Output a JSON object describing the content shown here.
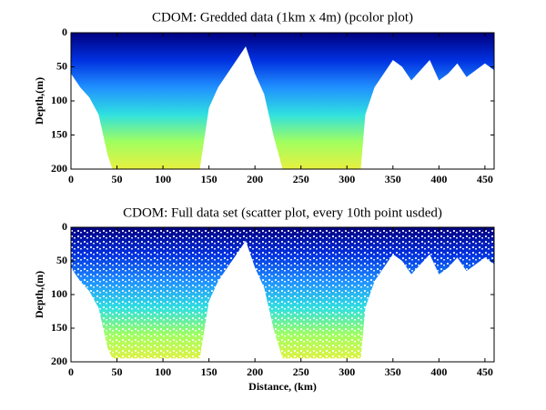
{
  "chart_data": [
    {
      "type": "area",
      "title": "CDOM: Gredded data (1km x 4m) (pcolor plot)",
      "ylabel": "Depth,(m)",
      "x": [
        0,
        10,
        20,
        30,
        40,
        45,
        140,
        150,
        160,
        170,
        180,
        190,
        200,
        210,
        220,
        230,
        315,
        320,
        330,
        340,
        350,
        360,
        370,
        380,
        390,
        400,
        410,
        420,
        430,
        440,
        450,
        460
      ],
      "values": [
        60,
        80,
        95,
        120,
        180,
        200,
        200,
        110,
        80,
        60,
        40,
        20,
        60,
        90,
        150,
        200,
        200,
        120,
        80,
        60,
        40,
        50,
        70,
        55,
        40,
        70,
        60,
        45,
        65,
        55,
        45,
        55
      ],
      "colormap": [
        "#00007f",
        "#0030e0",
        "#2090ff",
        "#30e0e0",
        "#a0ff60",
        "#e8f040"
      ],
      "xlim": [
        0,
        460
      ],
      "ylim": [
        200,
        0
      ],
      "invert_y": true,
      "xticks": [
        0,
        50,
        100,
        150,
        200,
        250,
        300,
        350,
        400,
        450
      ],
      "yticks": [
        0,
        50,
        100,
        150,
        200
      ]
    },
    {
      "type": "scatter-area",
      "title": "CDOM: Full data set (scatter plot, every 10th point usded)",
      "ylabel": "Depth,(m)",
      "xlabel": "Distance, (km)",
      "x": [
        0,
        10,
        20,
        30,
        40,
        45,
        140,
        150,
        160,
        170,
        180,
        190,
        200,
        210,
        220,
        230,
        315,
        320,
        330,
        340,
        350,
        360,
        370,
        380,
        390,
        400,
        410,
        420,
        430,
        440,
        450,
        460
      ],
      "values": [
        60,
        80,
        95,
        120,
        180,
        195,
        195,
        110,
        80,
        60,
        40,
        20,
        60,
        90,
        150,
        195,
        195,
        120,
        80,
        60,
        40,
        50,
        70,
        55,
        40,
        70,
        60,
        45,
        65,
        55,
        45,
        55
      ],
      "colormap": [
        "#00007f",
        "#0030e0",
        "#2090ff",
        "#30e0e0",
        "#a0ff60",
        "#e8f040"
      ],
      "xlim": [
        0,
        460
      ],
      "ylim": [
        200,
        0
      ],
      "invert_y": true,
      "xticks": [
        0,
        50,
        100,
        150,
        200,
        250,
        300,
        350,
        400,
        450
      ],
      "yticks": [
        0,
        50,
        100,
        150,
        200
      ]
    }
  ]
}
